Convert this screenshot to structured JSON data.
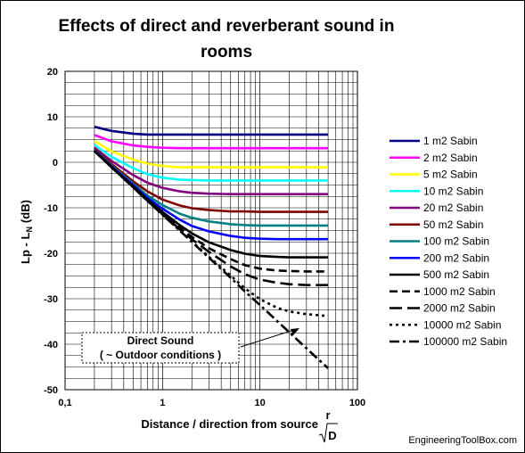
{
  "chart_data": {
    "type": "line",
    "title_line1": "Effects of direct and reverberant sound in",
    "title_line2": "rooms",
    "xlabel": "Distance / direction from source",
    "xlabel_fraction_num": "r",
    "xlabel_fraction_den": "D",
    "ylabel": "Lp - L",
    "ylabel_subscript": "N",
    "ylabel_unit": "(dB)",
    "x_scale": "log",
    "xlim": [
      0.1,
      100
    ],
    "ylim": [
      -50,
      20
    ],
    "x_ticks": [
      "0,1",
      "1",
      "10",
      "100"
    ],
    "y_ticks": [
      "20",
      "10",
      "0",
      "-10",
      "-20",
      "-30",
      "-40",
      "-50"
    ],
    "grid": true,
    "legend_position": "right",
    "x": [
      0.2,
      0.3,
      0.5,
      0.7,
      1,
      1.5,
      2,
      3,
      5,
      7,
      10,
      15,
      20,
      30,
      50
    ],
    "series": [
      {
        "name": "1 m2 Sabin",
        "color": "#000080",
        "dash": "solid",
        "values": [
          7.8,
          6.9,
          6.3,
          6.1,
          6.1,
          6.1,
          6.1,
          6.1,
          6.1,
          6.1,
          6.1,
          6.1,
          6.1,
          6.1,
          6.1
        ]
      },
      {
        "name": "2 m2 Sabin",
        "color": "#ff00ff",
        "dash": "solid",
        "values": [
          6.0,
          4.6,
          3.7,
          3.4,
          3.2,
          3.1,
          3.1,
          3.1,
          3.1,
          3.1,
          3.1,
          3.1,
          3.1,
          3.1,
          3.1
        ]
      },
      {
        "name": "5 m2 Sabin",
        "color": "#ffff00",
        "dash": "solid",
        "values": [
          4.7,
          2.4,
          0.6,
          -0.3,
          -0.8,
          -1.1,
          -1.1,
          -1.1,
          -1.1,
          -1.1,
          -1.1,
          -1.1,
          -1.1,
          -1.1,
          -1.1
        ]
      },
      {
        "name": "10 m2 Sabin",
        "color": "#00ffff",
        "dash": "solid",
        "values": [
          3.8,
          1.2,
          -1.3,
          -2.6,
          -3.4,
          -3.8,
          -3.9,
          -4.0,
          -4.0,
          -4.0,
          -4.0,
          -4.0,
          -4.0,
          -4.0,
          -4.0
        ]
      },
      {
        "name": "20 m2 Sabin",
        "color": "#800080",
        "dash": "solid",
        "values": [
          3.2,
          0.3,
          -2.8,
          -4.5,
          -5.6,
          -6.4,
          -6.7,
          -6.9,
          -7.0,
          -7.0,
          -7.0,
          -7.0,
          -7.0,
          -7.0,
          -7.0
        ]
      },
      {
        "name": "50 m2 Sabin",
        "color": "#800000",
        "dash": "solid",
        "values": [
          2.9,
          -0.4,
          -4.2,
          -6.4,
          -8.2,
          -9.5,
          -10.1,
          -10.5,
          -10.8,
          -10.8,
          -10.9,
          -10.9,
          -10.9,
          -10.9,
          -10.9
        ]
      },
      {
        "name": "100 m2 Sabin",
        "color": "#008080",
        "dash": "solid",
        "values": [
          2.7,
          -0.7,
          -4.7,
          -7.3,
          -9.4,
          -11.3,
          -12.2,
          -13.0,
          -13.6,
          -13.8,
          -13.9,
          -13.9,
          -13.9,
          -13.9,
          -13.9
        ]
      },
      {
        "name": "200 m2 Sabin",
        "color": "#0000ff",
        "dash": "solid",
        "values": [
          2.6,
          -0.9,
          -5.0,
          -7.8,
          -10.2,
          -12.6,
          -14.0,
          -15.2,
          -16.2,
          -16.6,
          -16.8,
          -16.9,
          -16.9,
          -16.9,
          -16.9
        ]
      },
      {
        "name": "500 m2 Sabin",
        "color": "#000000",
        "dash": "solid",
        "values": [
          2.5,
          -1.0,
          -5.3,
          -8.2,
          -10.9,
          -13.8,
          -15.6,
          -17.6,
          -19.3,
          -20.1,
          -20.6,
          -20.8,
          -20.9,
          -20.9,
          -20.9
        ]
      },
      {
        "name": "1000 m2 Sabin",
        "color": "#000000",
        "dash": "dash",
        "values": [
          2.5,
          -1.1,
          -5.4,
          -8.3,
          -11.2,
          -14.4,
          -16.4,
          -18.9,
          -21.3,
          -22.6,
          -23.4,
          -23.8,
          -23.9,
          -24.0,
          -24.0
        ]
      },
      {
        "name": "2000 m2 Sabin",
        "color": "#000000",
        "dash": "longdash",
        "values": [
          2.5,
          -1.1,
          -5.5,
          -8.4,
          -11.4,
          -14.7,
          -16.9,
          -19.7,
          -22.9,
          -24.6,
          -25.8,
          -26.5,
          -26.8,
          -27.0,
          -27.0
        ]
      },
      {
        "name": "10000 m2 Sabin",
        "color": "#000000",
        "dash": "dot",
        "values": [
          2.5,
          -1.1,
          -5.5,
          -8.5,
          -11.5,
          -15.0,
          -17.4,
          -20.8,
          -24.9,
          -27.7,
          -30.1,
          -32.0,
          -32.8,
          -33.4,
          -33.8
        ]
      },
      {
        "name": "100000 m2 Sabin",
        "color": "#000000",
        "dash": "dashdot",
        "values": [
          2.5,
          -1.1,
          -5.5,
          -8.5,
          -11.5,
          -15.0,
          -17.5,
          -21.0,
          -25.4,
          -28.4,
          -31.4,
          -34.9,
          -37.4,
          -40.9,
          -45.3
        ]
      }
    ],
    "annotation_line1": "Direct Sound",
    "annotation_line2": "( ~ Outdoor conditions )",
    "credit": "EngineeringToolBox.com"
  }
}
